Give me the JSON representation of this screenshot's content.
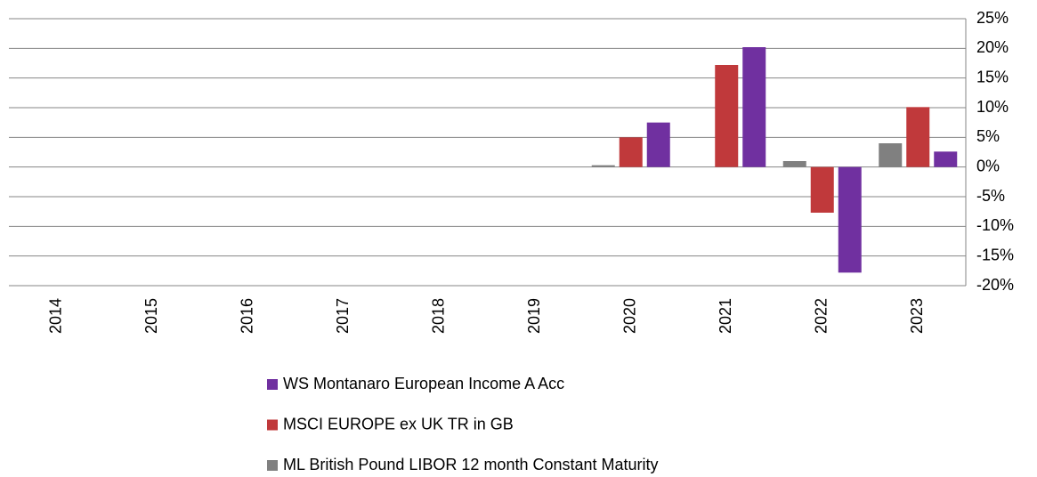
{
  "chart_data": {
    "type": "bar",
    "categories": [
      "2014",
      "2015",
      "2016",
      "2017",
      "2018",
      "2019",
      "2020",
      "2021",
      "2022",
      "2023"
    ],
    "series": [
      {
        "name": "WS Montanaro European Income A Acc",
        "color": "#7030a0",
        "values": [
          null,
          null,
          null,
          null,
          null,
          null,
          7.5,
          20.2,
          -17.8,
          2.6
        ]
      },
      {
        "name": "MSCI EUROPE ex UK TR in GB",
        "color": "#c0393b",
        "values": [
          null,
          null,
          null,
          null,
          null,
          null,
          5.0,
          17.2,
          -7.7,
          10.1
        ]
      },
      {
        "name": "ML British Pound LIBOR 12 month Constant Maturity",
        "color": "#808080",
        "values": [
          null,
          null,
          null,
          null,
          null,
          null,
          0.3,
          null,
          1.0,
          4.0
        ]
      }
    ],
    "ylim": [
      -20,
      25
    ],
    "yticks": [
      {
        "value": -20,
        "label": "-20%"
      },
      {
        "value": -15,
        "label": "-15%"
      },
      {
        "value": -10,
        "label": "-10%"
      },
      {
        "value": -5,
        "label": "-5%"
      },
      {
        "value": 0,
        "label": "0%"
      },
      {
        "value": 5,
        "label": "5%"
      },
      {
        "value": 10,
        "label": "10%"
      },
      {
        "value": 15,
        "label": "15%"
      },
      {
        "value": 20,
        "label": "20%"
      },
      {
        "value": 25,
        "label": "25%"
      }
    ],
    "grid": true,
    "legend": "bottom"
  }
}
